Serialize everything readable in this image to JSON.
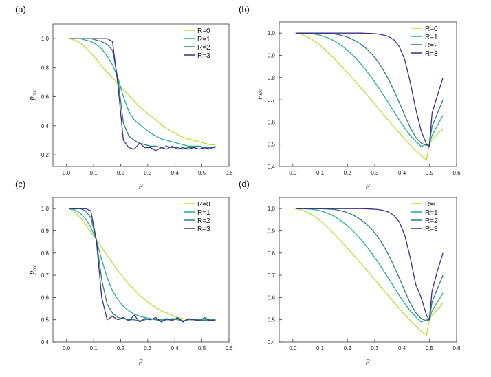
{
  "colors": {
    "R0": "#b5e02f",
    "R1": "#1fae8e",
    "R2": "#2a7f7a",
    "R3": "#3e2d86"
  },
  "chart_data": [
    {
      "type": "line",
      "panel": "(a)",
      "xlabel": "p",
      "ylabel_main": "p",
      "ylabel_sub": "rec",
      "xlim": [
        -0.05,
        0.6
      ],
      "ylim": [
        0.12,
        1.1
      ],
      "xticks": [
        "0.0",
        "0.1",
        "0.2",
        "0.3",
        "0.4",
        "0.5",
        "0.6"
      ],
      "yticks": [
        "0.2",
        "0.4",
        "0.6",
        "0.8",
        "1.0"
      ],
      "legend_position": "top-right",
      "x": [
        0.01,
        0.03,
        0.05,
        0.07,
        0.09,
        0.11,
        0.13,
        0.15,
        0.17,
        0.19,
        0.21,
        0.23,
        0.25,
        0.27,
        0.29,
        0.31,
        0.33,
        0.35,
        0.37,
        0.39,
        0.41,
        0.43,
        0.45,
        0.47,
        0.49,
        0.51,
        0.53,
        0.55
      ],
      "series": [
        {
          "name": "R=0",
          "values": [
            1.0,
            0.99,
            0.97,
            0.94,
            0.9,
            0.86,
            0.81,
            0.77,
            0.73,
            0.69,
            0.65,
            0.61,
            0.57,
            0.53,
            0.5,
            0.47,
            0.44,
            0.41,
            0.38,
            0.36,
            0.34,
            0.32,
            0.31,
            0.3,
            0.29,
            0.28,
            0.27,
            0.27
          ]
        },
        {
          "name": "R=1",
          "values": [
            1.0,
            1.0,
            1.0,
            0.99,
            0.98,
            0.96,
            0.93,
            0.88,
            0.82,
            0.73,
            0.6,
            0.5,
            0.44,
            0.41,
            0.38,
            0.35,
            0.33,
            0.31,
            0.3,
            0.29,
            0.28,
            0.27,
            0.26,
            0.26,
            0.26,
            0.25,
            0.25,
            0.25
          ]
        },
        {
          "name": "R=2",
          "values": [
            1.0,
            1.0,
            1.0,
            1.0,
            1.0,
            0.99,
            0.98,
            0.96,
            0.92,
            0.72,
            0.42,
            0.33,
            0.3,
            0.28,
            0.27,
            0.26,
            0.26,
            0.25,
            0.26,
            0.25,
            0.25,
            0.24,
            0.25,
            0.25,
            0.26,
            0.24,
            0.25,
            0.25
          ]
        },
        {
          "name": "R=3",
          "values": [
            1.0,
            1.0,
            1.0,
            1.0,
            1.0,
            1.0,
            1.0,
            1.0,
            0.98,
            0.68,
            0.3,
            0.25,
            0.24,
            0.28,
            0.25,
            0.25,
            0.23,
            0.25,
            0.24,
            0.26,
            0.24,
            0.25,
            0.24,
            0.25,
            0.24,
            0.25,
            0.24,
            0.26
          ]
        }
      ]
    },
    {
      "type": "line",
      "panel": "(b)",
      "xlabel": "p",
      "ylabel_main": "p",
      "ylabel_sub": "rec",
      "xlim": [
        -0.05,
        0.6
      ],
      "ylim": [
        0.4,
        1.05
      ],
      "xticks": [
        "0.0",
        "0.1",
        "0.2",
        "0.3",
        "0.4",
        "0.5",
        "0.6"
      ],
      "yticks": [
        "0.4",
        "0.5",
        "0.6",
        "0.7",
        "0.8",
        "0.9",
        "1.0"
      ],
      "legend_position": "top-right",
      "x": [
        0.01,
        0.03,
        0.05,
        0.07,
        0.09,
        0.11,
        0.13,
        0.15,
        0.17,
        0.19,
        0.21,
        0.23,
        0.25,
        0.27,
        0.29,
        0.31,
        0.33,
        0.35,
        0.37,
        0.39,
        0.41,
        0.43,
        0.45,
        0.47,
        0.49,
        0.5,
        0.51,
        0.53,
        0.55
      ],
      "series": [
        {
          "name": "R=0",
          "values": [
            1.0,
            0.995,
            0.985,
            0.972,
            0.955,
            0.935,
            0.912,
            0.888,
            0.862,
            0.835,
            0.808,
            0.78,
            0.752,
            0.724,
            0.695,
            0.666,
            0.637,
            0.608,
            0.579,
            0.551,
            0.523,
            0.497,
            0.472,
            0.448,
            0.43,
            0.5,
            0.52,
            0.545,
            0.57
          ]
        },
        {
          "name": "R=1",
          "values": [
            1.0,
            1.0,
            0.999,
            0.997,
            0.993,
            0.987,
            0.978,
            0.966,
            0.951,
            0.933,
            0.912,
            0.888,
            0.86,
            0.83,
            0.797,
            0.762,
            0.725,
            0.687,
            0.648,
            0.609,
            0.572,
            0.54,
            0.513,
            0.49,
            0.5,
            0.5,
            0.54,
            0.585,
            0.63
          ]
        },
        {
          "name": "R=2",
          "values": [
            1.0,
            1.0,
            1.0,
            1.0,
            1.0,
            0.999,
            0.998,
            0.996,
            0.992,
            0.986,
            0.977,
            0.965,
            0.949,
            0.93,
            0.905,
            0.875,
            0.838,
            0.793,
            0.743,
            0.688,
            0.63,
            0.575,
            0.532,
            0.505,
            0.495,
            0.5,
            0.58,
            0.64,
            0.7
          ]
        },
        {
          "name": "R=3",
          "values": [
            1.0,
            1.0,
            1.0,
            1.0,
            1.0,
            1.0,
            1.0,
            1.0,
            1.0,
            1.0,
            1.0,
            1.0,
            1.0,
            0.999,
            0.998,
            0.996,
            0.992,
            0.985,
            0.97,
            0.94,
            0.88,
            0.78,
            0.66,
            0.56,
            0.5,
            0.49,
            0.64,
            0.72,
            0.8
          ]
        }
      ]
    },
    {
      "type": "line",
      "panel": "(c)",
      "xlabel": "p",
      "ylabel_main": "p",
      "ylabel_sub": "rec",
      "xlim": [
        -0.05,
        0.6
      ],
      "ylim": [
        0.4,
        1.05
      ],
      "xticks": [
        "0.0",
        "0.1",
        "0.2",
        "0.3",
        "0.4",
        "0.5",
        "0.6"
      ],
      "yticks": [
        "0.4",
        "0.5",
        "0.6",
        "0.7",
        "0.8",
        "0.9",
        "1.0"
      ],
      "legend_position": "top-right",
      "x": [
        0.01,
        0.03,
        0.05,
        0.07,
        0.09,
        0.11,
        0.13,
        0.15,
        0.17,
        0.19,
        0.21,
        0.23,
        0.25,
        0.27,
        0.29,
        0.31,
        0.33,
        0.35,
        0.37,
        0.39,
        0.41,
        0.43,
        0.45,
        0.47,
        0.49,
        0.51,
        0.53,
        0.55
      ],
      "series": [
        {
          "name": "R=0",
          "values": [
            1.0,
            0.985,
            0.96,
            0.93,
            0.895,
            0.86,
            0.825,
            0.79,
            0.755,
            0.72,
            0.69,
            0.66,
            0.635,
            0.61,
            0.59,
            0.57,
            0.555,
            0.54,
            0.53,
            0.52,
            0.51,
            0.505,
            0.5,
            0.5,
            0.5,
            0.5,
            0.5,
            0.495
          ]
        },
        {
          "name": "R=1",
          "values": [
            1.0,
            0.995,
            0.98,
            0.955,
            0.915,
            0.86,
            0.77,
            0.69,
            0.63,
            0.59,
            0.56,
            0.54,
            0.525,
            0.515,
            0.51,
            0.505,
            0.5,
            0.5,
            0.5,
            0.505,
            0.5,
            0.495,
            0.5,
            0.5,
            0.495,
            0.5,
            0.5,
            0.5
          ]
        },
        {
          "name": "R=2",
          "values": [
            1.0,
            1.0,
            1.0,
            0.99,
            0.96,
            0.86,
            0.68,
            0.57,
            0.53,
            0.51,
            0.505,
            0.5,
            0.5,
            0.495,
            0.5,
            0.505,
            0.5,
            0.495,
            0.5,
            0.5,
            0.505,
            0.495,
            0.5,
            0.5,
            0.5,
            0.495,
            0.5,
            0.495
          ]
        },
        {
          "name": "R=3",
          "values": [
            1.0,
            1.0,
            1.0,
            1.0,
            0.99,
            0.86,
            0.6,
            0.5,
            0.515,
            0.5,
            0.51,
            0.495,
            0.52,
            0.49,
            0.505,
            0.5,
            0.51,
            0.49,
            0.505,
            0.495,
            0.51,
            0.49,
            0.505,
            0.5,
            0.495,
            0.51,
            0.495,
            0.5
          ]
        }
      ]
    },
    {
      "type": "line",
      "panel": "(d)",
      "xlabel": "p",
      "ylabel_main": "",
      "ylabel_sub": "",
      "xlim": [
        -0.05,
        0.6
      ],
      "ylim": [
        0.4,
        1.05
      ],
      "xticks": [
        "0.0",
        "0.1",
        "0.2",
        "0.3",
        "0.4",
        "0.5",
        "0.6"
      ],
      "yticks": [
        "0.4",
        "0.5",
        "0.6",
        "0.7",
        "0.8",
        "0.9",
        "1.0"
      ],
      "legend_position": "top-right",
      "x": [
        0.01,
        0.03,
        0.05,
        0.07,
        0.09,
        0.11,
        0.13,
        0.15,
        0.17,
        0.19,
        0.21,
        0.23,
        0.25,
        0.27,
        0.29,
        0.31,
        0.33,
        0.35,
        0.37,
        0.39,
        0.41,
        0.43,
        0.45,
        0.47,
        0.49,
        0.5,
        0.51,
        0.53,
        0.55
      ],
      "series": [
        {
          "name": "R=0",
          "values": [
            1.0,
            0.995,
            0.985,
            0.972,
            0.955,
            0.935,
            0.912,
            0.888,
            0.862,
            0.835,
            0.808,
            0.78,
            0.752,
            0.724,
            0.695,
            0.666,
            0.637,
            0.608,
            0.579,
            0.551,
            0.523,
            0.497,
            0.472,
            0.448,
            0.43,
            0.5,
            0.52,
            0.545,
            0.575
          ]
        },
        {
          "name": "R=1",
          "values": [
            1.0,
            1.0,
            0.999,
            0.997,
            0.993,
            0.987,
            0.978,
            0.966,
            0.951,
            0.933,
            0.912,
            0.888,
            0.86,
            0.83,
            0.797,
            0.762,
            0.725,
            0.687,
            0.648,
            0.609,
            0.572,
            0.54,
            0.513,
            0.49,
            0.5,
            0.5,
            0.54,
            0.58,
            0.62
          ]
        },
        {
          "name": "R=2",
          "values": [
            1.0,
            1.0,
            1.0,
            1.0,
            1.0,
            0.999,
            0.998,
            0.996,
            0.992,
            0.986,
            0.977,
            0.965,
            0.949,
            0.93,
            0.905,
            0.875,
            0.838,
            0.793,
            0.743,
            0.688,
            0.63,
            0.575,
            0.532,
            0.505,
            0.495,
            0.5,
            0.58,
            0.64,
            0.7
          ]
        },
        {
          "name": "R=3",
          "values": [
            1.0,
            1.0,
            1.0,
            1.0,
            1.0,
            1.0,
            1.0,
            1.0,
            1.0,
            1.0,
            1.0,
            1.0,
            1.0,
            0.999,
            0.998,
            0.996,
            0.992,
            0.985,
            0.97,
            0.94,
            0.88,
            0.78,
            0.66,
            0.6,
            0.52,
            0.5,
            0.63,
            0.72,
            0.8
          ]
        }
      ]
    }
  ]
}
